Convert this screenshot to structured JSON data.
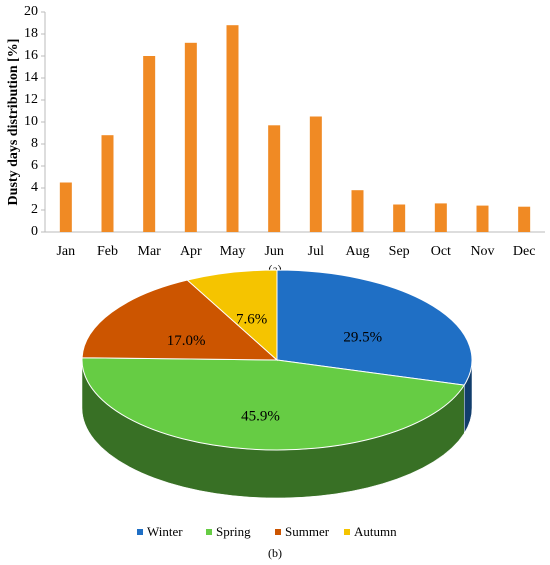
{
  "chart_data": [
    {
      "type": "bar",
      "y_label": "Dusty days distribution [%]",
      "caption": "(a)",
      "categories": [
        "Jan",
        "Feb",
        "Mar",
        "Apr",
        "May",
        "Jun",
        "Jul",
        "Aug",
        "Sep",
        "Oct",
        "Nov",
        "Dec"
      ],
      "values": [
        4.5,
        8.8,
        16.0,
        17.2,
        18.8,
        9.7,
        10.5,
        3.8,
        2.5,
        2.6,
        2.4,
        2.3
      ],
      "color": "#f08a24",
      "ylim": [
        0,
        20
      ],
      "yticks": [
        0,
        2,
        4,
        6,
        8,
        10,
        12,
        14,
        16,
        18,
        20
      ]
    },
    {
      "type": "pie",
      "caption": "(b)",
      "categories": [
        "Winter",
        "Spring",
        "Summer",
        "Autumn"
      ],
      "values": [
        29.5,
        45.9,
        17.0,
        7.6
      ],
      "value_labels": [
        "29.5%",
        "45.9%",
        "17.0%",
        "7.6%"
      ],
      "colors": [
        "#1f6fc5",
        "#66cc44",
        "#cc5500",
        "#f5c400"
      ],
      "legend": "bottom"
    }
  ]
}
